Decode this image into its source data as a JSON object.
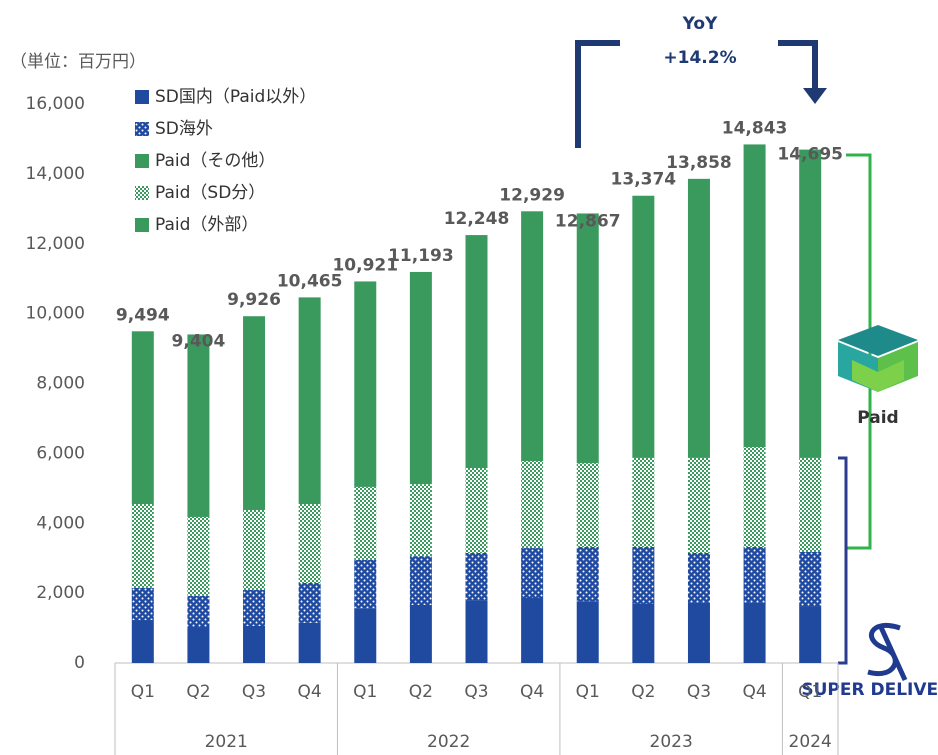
{
  "chart_data": {
    "type": "stacked_bar",
    "unit_label": "（単位：百万円）",
    "categories": [
      "Q1",
      "Q2",
      "Q3",
      "Q4",
      "Q1",
      "Q2",
      "Q3",
      "Q4",
      "Q1",
      "Q2",
      "Q3",
      "Q4",
      "Q1"
    ],
    "groups": [
      "2021",
      "2021",
      "2021",
      "2021",
      "2022",
      "2022",
      "2022",
      "2022",
      "2023",
      "2023",
      "2023",
      "2023",
      "2024"
    ],
    "series": [
      {
        "name": "SD国内（Paid以外）",
        "color": "#1f4aa0",
        "pattern": "solid",
        "values": [
          1230,
          1030,
          1060,
          1150,
          1570,
          1660,
          1800,
          1860,
          1770,
          1690,
          1720,
          1720,
          1630
        ]
      },
      {
        "name": "SD海外",
        "color": "#1f4aa0",
        "pattern": "dots",
        "values": [
          920,
          890,
          1030,
          1140,
          1380,
          1400,
          1350,
          1430,
          1550,
          1630,
          1430,
          1600,
          1550
        ]
      },
      {
        "name": "Paid（その他）",
        "color": "#3a9a5e",
        "pattern": "solid",
        "values": [
          0,
          0,
          0,
          0,
          0,
          0,
          0,
          0,
          0,
          0,
          0,
          0,
          0
        ]
      },
      {
        "name": "Paid（SD分）",
        "color": "#3a9a5e",
        "pattern": "checks",
        "values": [
          2400,
          2260,
          2290,
          2260,
          2090,
          2060,
          2430,
          2490,
          2400,
          2550,
          2720,
          2860,
          2690
        ]
      },
      {
        "name": "Paid（外部）",
        "color": "#3a9a5e",
        "pattern": "solid",
        "values": [
          4944,
          5224,
          5546,
          5915,
          5881,
          6073,
          6668,
          7149,
          7147,
          7504,
          7988,
          8663,
          8825
        ]
      }
    ],
    "totals": [
      9494,
      9404,
      9926,
      10465,
      10921,
      11193,
      12248,
      12929,
      12867,
      13374,
      13858,
      14843,
      14695
    ],
    "value_labels": [
      "9,494",
      "9,404",
      "9,926",
      "10,465",
      "10,921",
      "11,193",
      "12,248",
      "12,929",
      "12,867",
      "13,374",
      "13,858",
      "14,843",
      "14,695"
    ],
    "ylim": [
      0,
      16000
    ],
    "yticks": [
      0,
      {
        "value": 2000,
        "label": "2,000"
      },
      {
        "value": 4000,
        "label": "4,000"
      },
      {
        "value": 6000,
        "label": "6,000"
      },
      {
        "value": 8000,
        "label": "8,000"
      },
      {
        "value": 10000,
        "label": "10,000"
      },
      {
        "value": 12000,
        "label": "12,000"
      },
      {
        "value": 14000,
        "label": "14,000"
      },
      {
        "value": 16000,
        "label": "16,000"
      }
    ],
    "annotations": {
      "yoy_title": "YoY",
      "yoy_value": "+14.2%",
      "paid_logo": "Paid",
      "sd_logo": "SUPER DELIVERY"
    }
  }
}
